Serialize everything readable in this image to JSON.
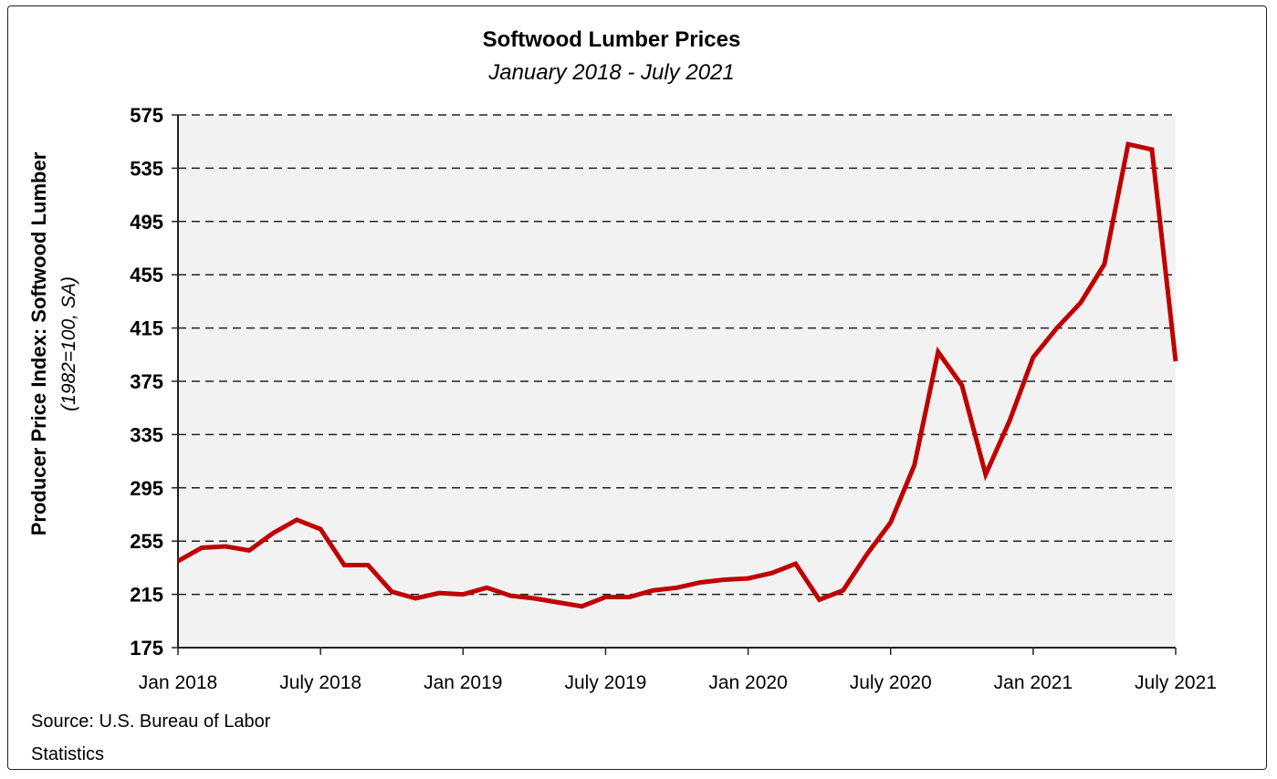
{
  "chart_data": {
    "type": "line",
    "title": "Softwood Lumber Prices",
    "subtitle": "January 2018 - July 2021",
    "ylabel": "Producer Price Index: Softwood Lumber",
    "ylabel_sub": "(1982=100, SA)",
    "xlabel": "",
    "ylim": [
      175,
      575
    ],
    "yticks": [
      175,
      215,
      255,
      295,
      335,
      375,
      415,
      455,
      495,
      535,
      575
    ],
    "xtick_labels": [
      "Jan 2018",
      "July 2018",
      "Jan 2019",
      "July 2019",
      "Jan 2020",
      "July 2020",
      "Jan 2021",
      "July 2021"
    ],
    "grid": "horizontal dashed",
    "background": "#f2f2f2",
    "line_color": "#c00000",
    "x_start": "2018-01",
    "x_end": "2021-07",
    "series": [
      {
        "values": [
          240,
          250,
          251,
          248,
          261,
          271,
          264,
          237,
          237,
          217,
          212,
          216,
          215,
          220,
          214,
          212,
          209,
          206,
          213,
          213,
          218,
          220,
          224,
          226,
          227,
          231,
          238,
          211,
          218,
          245,
          269,
          312,
          397,
          372,
          305,
          345,
          393,
          415,
          434,
          463,
          553,
          549,
          390
        ]
      }
    ],
    "source": "Source: U.S. Bureau of Labor Statistics"
  }
}
